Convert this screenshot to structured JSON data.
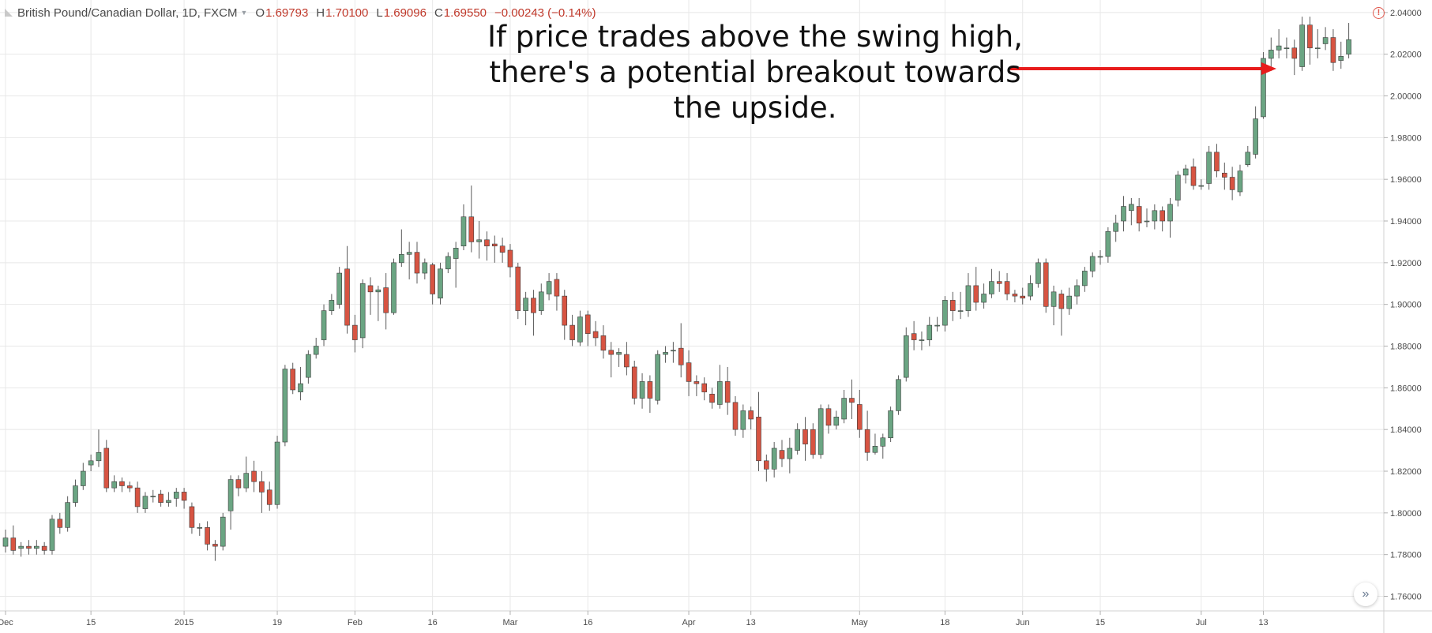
{
  "header": {
    "title": "British Pound/Canadian Dollar, 1D, FXCM",
    "open_label": "O",
    "open": "1.69793",
    "high_label": "H",
    "high": "1.70100",
    "low_label": "L",
    "low": "1.69096",
    "close_label": "C",
    "close": "1.69550",
    "change": "−0.00243 (−0.14%)",
    "caret_icon": "chevron-down-icon",
    "alert_icon": "warning-icon",
    "alert_glyph": "!"
  },
  "annotation": {
    "text": "If price trades above the swing high, there's a potential breakout towards the upside."
  },
  "scroll_button": {
    "icon": "double-chevron-right-icon",
    "glyph": "»"
  },
  "colors": {
    "up_fill": "#6ba583",
    "down_fill": "#d75442",
    "wick": "#5b5b5b",
    "grid": "#e8e8e8",
    "axis_text": "#4a4a4a",
    "arrow": "#e81c1c",
    "change_text": "#c0392b"
  },
  "chart_data": {
    "type": "candlestick",
    "title": "British Pound/Canadian Dollar, 1D, FXCM",
    "ylim": [
      1.753,
      2.046
    ],
    "y_ticks": [
      "2.04000",
      "2.02000",
      "2.00000",
      "1.98000",
      "1.96000",
      "1.94000",
      "1.92000",
      "1.90000",
      "1.88000",
      "1.86000",
      "1.84000",
      "1.82000",
      "1.80000",
      "1.78000",
      "1.76000"
    ],
    "x_ticks": [
      {
        "index": 0,
        "label": "Dec"
      },
      {
        "index": 11,
        "label": "15"
      },
      {
        "index": 23,
        "label": "2015"
      },
      {
        "index": 35,
        "label": "19"
      },
      {
        "index": 45,
        "label": "Feb"
      },
      {
        "index": 55,
        "label": "16"
      },
      {
        "index": 65,
        "label": "Mar"
      },
      {
        "index": 75,
        "label": "16"
      },
      {
        "index": 88,
        "label": "Apr"
      },
      {
        "index": 96,
        "label": "13"
      },
      {
        "index": 110,
        "label": "May"
      },
      {
        "index": 121,
        "label": "18"
      },
      {
        "index": 131,
        "label": "Jun"
      },
      {
        "index": 141,
        "label": "15"
      },
      {
        "index": 154,
        "label": "Jul"
      },
      {
        "index": 162,
        "label": "13"
      }
    ],
    "candles": [
      [
        1.784,
        1.788,
        1.781,
        1.792
      ],
      [
        1.788,
        1.782,
        1.78,
        1.794
      ],
      [
        1.783,
        1.784,
        1.779,
        1.786
      ],
      [
        1.784,
        1.783,
        1.78,
        1.787
      ],
      [
        1.783,
        1.784,
        1.78,
        1.787
      ],
      [
        1.784,
        1.782,
        1.78,
        1.786
      ],
      [
        1.782,
        1.797,
        1.78,
        1.799
      ],
      [
        1.797,
        1.793,
        1.79,
        1.8
      ],
      [
        1.793,
        1.805,
        1.791,
        1.808
      ],
      [
        1.805,
        1.813,
        1.803,
        1.816
      ],
      [
        1.813,
        1.82,
        1.811,
        1.824
      ],
      [
        1.823,
        1.825,
        1.82,
        1.828
      ],
      [
        1.825,
        1.829,
        1.822,
        1.84
      ],
      [
        1.831,
        1.812,
        1.81,
        1.835
      ],
      [
        1.812,
        1.815,
        1.81,
        1.818
      ],
      [
        1.815,
        1.813,
        1.81,
        1.817
      ],
      [
        1.813,
        1.812,
        1.81,
        1.815
      ],
      [
        1.812,
        1.803,
        1.8,
        1.815
      ],
      [
        1.802,
        1.808,
        1.8,
        1.81
      ],
      [
        1.808,
        1.808,
        1.805,
        1.811
      ],
      [
        1.809,
        1.805,
        1.803,
        1.811
      ],
      [
        1.805,
        1.806,
        1.803,
        1.81
      ],
      [
        1.807,
        1.81,
        1.803,
        1.812
      ],
      [
        1.81,
        1.806,
        1.802,
        1.812
      ],
      [
        1.803,
        1.793,
        1.79,
        1.805
      ],
      [
        1.793,
        1.793,
        1.789,
        1.795
      ],
      [
        1.793,
        1.785,
        1.782,
        1.796
      ],
      [
        1.785,
        1.784,
        1.777,
        1.787
      ],
      [
        1.784,
        1.798,
        1.782,
        1.8
      ],
      [
        1.801,
        1.816,
        1.792,
        1.818
      ],
      [
        1.816,
        1.812,
        1.808,
        1.818
      ],
      [
        1.812,
        1.819,
        1.81,
        1.827
      ],
      [
        1.82,
        1.815,
        1.81,
        1.825
      ],
      [
        1.815,
        1.81,
        1.8,
        1.82
      ],
      [
        1.811,
        1.804,
        1.801,
        1.815
      ],
      [
        1.804,
        1.834,
        1.802,
        1.837
      ],
      [
        1.834,
        1.869,
        1.832,
        1.871
      ],
      [
        1.869,
        1.859,
        1.857,
        1.872
      ],
      [
        1.858,
        1.862,
        1.854,
        1.87
      ],
      [
        1.865,
        1.876,
        1.862,
        1.878
      ],
      [
        1.876,
        1.88,
        1.874,
        1.884
      ],
      [
        1.883,
        1.897,
        1.88,
        1.9
      ],
      [
        1.897,
        1.902,
        1.895,
        1.905
      ],
      [
        1.9,
        1.915,
        1.898,
        1.918
      ],
      [
        1.917,
        1.89,
        1.886,
        1.928
      ],
      [
        1.89,
        1.883,
        1.877,
        1.895
      ],
      [
        1.884,
        1.91,
        1.879,
        1.912
      ],
      [
        1.909,
        1.906,
        1.895,
        1.913
      ],
      [
        1.906,
        1.907,
        1.892,
        1.909
      ],
      [
        1.908,
        1.896,
        1.888,
        1.915
      ],
      [
        1.896,
        1.92,
        1.895,
        1.922
      ],
      [
        1.92,
        1.924,
        1.918,
        1.936
      ],
      [
        1.924,
        1.925,
        1.912,
        1.93
      ],
      [
        1.925,
        1.915,
        1.91,
        1.93
      ],
      [
        1.915,
        1.92,
        1.912,
        1.922
      ],
      [
        1.919,
        1.905,
        1.9,
        1.92
      ],
      [
        1.903,
        1.917,
        1.9,
        1.92
      ],
      [
        1.917,
        1.923,
        1.915,
        1.925
      ],
      [
        1.922,
        1.927,
        1.908,
        1.93
      ],
      [
        1.928,
        1.942,
        1.926,
        1.948
      ],
      [
        1.942,
        1.93,
        1.925,
        1.957
      ],
      [
        1.93,
        1.931,
        1.922,
        1.94
      ],
      [
        1.931,
        1.928,
        1.921,
        1.935
      ],
      [
        1.929,
        1.928,
        1.92,
        1.933
      ],
      [
        1.928,
        1.925,
        1.92,
        1.932
      ],
      [
        1.926,
        1.918,
        1.913,
        1.929
      ],
      [
        1.918,
        1.897,
        1.893,
        1.92
      ],
      [
        1.897,
        1.903,
        1.89,
        1.906
      ],
      [
        1.903,
        1.896,
        1.885,
        1.907
      ],
      [
        1.897,
        1.906,
        1.895,
        1.91
      ],
      [
        1.905,
        1.911,
        1.902,
        1.915
      ],
      [
        1.912,
        1.904,
        1.897,
        1.915
      ],
      [
        1.904,
        1.89,
        1.883,
        1.907
      ],
      [
        1.89,
        1.883,
        1.88,
        1.895
      ],
      [
        1.882,
        1.894,
        1.88,
        1.897
      ],
      [
        1.895,
        1.886,
        1.88,
        1.897
      ],
      [
        1.887,
        1.884,
        1.88,
        1.892
      ],
      [
        1.885,
        1.878,
        1.874,
        1.89
      ],
      [
        1.878,
        1.876,
        1.865,
        1.882
      ],
      [
        1.876,
        1.877,
        1.87,
        1.879
      ],
      [
        1.876,
        1.87,
        1.866,
        1.882
      ],
      [
        1.87,
        1.855,
        1.852,
        1.873
      ],
      [
        1.855,
        1.863,
        1.85,
        1.867
      ],
      [
        1.863,
        1.855,
        1.848,
        1.866
      ],
      [
        1.854,
        1.876,
        1.852,
        1.878
      ],
      [
        1.876,
        1.877,
        1.872,
        1.88
      ],
      [
        1.878,
        1.878,
        1.872,
        1.882
      ],
      [
        1.879,
        1.871,
        1.865,
        1.891
      ],
      [
        1.872,
        1.863,
        1.856,
        1.878
      ],
      [
        1.863,
        1.862,
        1.856,
        1.866
      ],
      [
        1.862,
        1.858,
        1.854,
        1.865
      ],
      [
        1.857,
        1.853,
        1.85,
        1.86
      ],
      [
        1.852,
        1.863,
        1.85,
        1.871
      ],
      [
        1.863,
        1.853,
        1.847,
        1.87
      ],
      [
        1.853,
        1.84,
        1.837,
        1.856
      ],
      [
        1.84,
        1.849,
        1.836,
        1.852
      ],
      [
        1.849,
        1.845,
        1.84,
        1.851
      ],
      [
        1.846,
        1.825,
        1.82,
        1.858
      ],
      [
        1.825,
        1.821,
        1.815,
        1.828
      ],
      [
        1.821,
        1.831,
        1.817,
        1.834
      ],
      [
        1.83,
        1.826,
        1.822,
        1.835
      ],
      [
        1.826,
        1.831,
        1.819,
        1.836
      ],
      [
        1.83,
        1.84,
        1.828,
        1.843
      ],
      [
        1.84,
        1.833,
        1.825,
        1.846
      ],
      [
        1.84,
        1.828,
        1.826,
        1.843
      ],
      [
        1.828,
        1.85,
        1.826,
        1.852
      ],
      [
        1.85,
        1.842,
        1.838,
        1.852
      ],
      [
        1.842,
        1.846,
        1.84,
        1.849
      ],
      [
        1.845,
        1.855,
        1.843,
        1.859
      ],
      [
        1.855,
        1.853,
        1.845,
        1.864
      ],
      [
        1.852,
        1.84,
        1.836,
        1.859
      ],
      [
        1.84,
        1.829,
        1.825,
        1.849
      ],
      [
        1.829,
        1.832,
        1.828,
        1.838
      ],
      [
        1.832,
        1.836,
        1.826,
        1.838
      ],
      [
        1.836,
        1.849,
        1.834,
        1.851
      ],
      [
        1.849,
        1.864,
        1.847,
        1.866
      ],
      [
        1.865,
        1.885,
        1.863,
        1.889
      ],
      [
        1.886,
        1.883,
        1.878,
        1.892
      ],
      [
        1.883,
        1.883,
        1.878,
        1.887
      ],
      [
        1.883,
        1.89,
        1.88,
        1.894
      ],
      [
        1.89,
        1.89,
        1.887,
        1.894
      ],
      [
        1.89,
        1.902,
        1.887,
        1.904
      ],
      [
        1.902,
        1.897,
        1.892,
        1.906
      ],
      [
        1.897,
        1.897,
        1.893,
        1.906
      ],
      [
        1.897,
        1.909,
        1.894,
        1.915
      ],
      [
        1.909,
        1.901,
        1.897,
        1.918
      ],
      [
        1.901,
        1.905,
        1.898,
        1.91
      ],
      [
        1.905,
        1.911,
        1.903,
        1.917
      ],
      [
        1.911,
        1.91,
        1.906,
        1.916
      ],
      [
        1.911,
        1.905,
        1.902,
        1.915
      ],
      [
        1.905,
        1.904,
        1.901,
        1.907
      ],
      [
        1.904,
        1.903,
        1.9,
        1.908
      ],
      [
        1.904,
        1.91,
        1.902,
        1.914
      ],
      [
        1.91,
        1.92,
        1.908,
        1.922
      ],
      [
        1.92,
        1.899,
        1.896,
        1.922
      ],
      [
        1.899,
        1.906,
        1.89,
        1.909
      ],
      [
        1.905,
        1.898,
        1.885,
        1.907
      ],
      [
        1.898,
        1.904,
        1.895,
        1.908
      ],
      [
        1.904,
        1.909,
        1.9,
        1.912
      ],
      [
        1.909,
        1.916,
        1.906,
        1.918
      ],
      [
        1.916,
        1.923,
        1.913,
        1.925
      ],
      [
        1.923,
        1.923,
        1.919,
        1.926
      ],
      [
        1.923,
        1.935,
        1.92,
        1.937
      ],
      [
        1.935,
        1.939,
        1.93,
        1.943
      ],
      [
        1.94,
        1.947,
        1.935,
        1.952
      ],
      [
        1.945,
        1.948,
        1.938,
        1.951
      ],
      [
        1.947,
        1.939,
        1.935,
        1.951
      ],
      [
        1.94,
        1.94,
        1.937,
        1.946
      ],
      [
        1.94,
        1.945,
        1.936,
        1.948
      ],
      [
        1.945,
        1.94,
        1.935,
        1.947
      ],
      [
        1.94,
        1.948,
        1.932,
        1.951
      ],
      [
        1.95,
        1.962,
        1.947,
        1.964
      ],
      [
        1.962,
        1.965,
        1.958,
        1.967
      ],
      [
        1.966,
        1.957,
        1.955,
        1.97
      ],
      [
        1.957,
        1.957,
        1.955,
        1.96
      ],
      [
        1.958,
        1.973,
        1.955,
        1.976
      ],
      [
        1.973,
        1.964,
        1.961,
        1.977
      ],
      [
        1.963,
        1.961,
        1.955,
        1.968
      ],
      [
        1.961,
        1.955,
        1.95,
        1.966
      ],
      [
        1.954,
        1.964,
        1.952,
        1.967
      ],
      [
        1.967,
        1.973,
        1.966,
        1.976
      ],
      [
        1.972,
        1.989,
        1.97,
        1.995
      ],
      [
        1.99,
        2.018,
        1.989,
        2.021
      ],
      [
        2.018,
        2.022,
        2.012,
        2.028
      ],
      [
        2.022,
        2.024,
        2.018,
        2.032
      ],
      [
        2.023,
        2.023,
        2.018,
        2.028
      ],
      [
        2.023,
        2.018,
        2.01,
        2.027
      ],
      [
        2.014,
        2.034,
        2.012,
        2.038
      ],
      [
        2.034,
        2.023,
        2.015,
        2.038
      ],
      [
        2.023,
        2.023,
        2.018,
        2.032
      ],
      [
        2.025,
        2.028,
        2.022,
        2.033
      ],
      [
        2.028,
        2.016,
        2.012,
        2.032
      ],
      [
        2.017,
        2.019,
        2.013,
        2.026
      ],
      [
        2.02,
        2.027,
        2.018,
        2.035
      ]
    ]
  }
}
